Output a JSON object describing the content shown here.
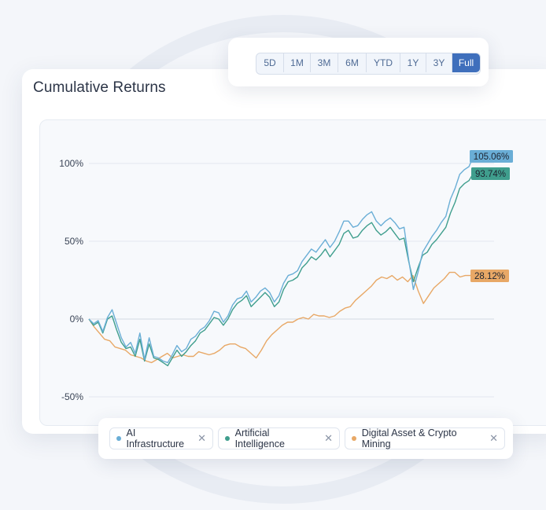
{
  "title": "Cumulative Returns",
  "range_buttons": [
    {
      "label": "5D",
      "active": false
    },
    {
      "label": "1M",
      "active": false
    },
    {
      "label": "3M",
      "active": false
    },
    {
      "label": "6M",
      "active": false
    },
    {
      "label": "YTD",
      "active": false
    },
    {
      "label": "1Y",
      "active": false
    },
    {
      "label": "3Y",
      "active": false
    },
    {
      "label": "Full",
      "active": true
    }
  ],
  "legend": [
    {
      "label": "AI Infrastructure",
      "color": "#6aaed6"
    },
    {
      "label": "Artificial Intelligence",
      "color": "#3f9e8d"
    },
    {
      "label": "Digital Asset & Crypto Mining",
      "color": "#e8a866"
    }
  ],
  "chart_data": {
    "type": "line",
    "ylim": [
      -50,
      110
    ],
    "yticks": [
      {
        "value": 100,
        "label": "100%"
      },
      {
        "value": 50,
        "label": "50%"
      },
      {
        "value": 0,
        "label": "0%"
      },
      {
        "value": -50,
        "label": "-50%"
      }
    ],
    "series": [
      {
        "name": "AI Infrastructure",
        "color": "#6aaed6",
        "end_label": "105.06%",
        "values": [
          0,
          -3,
          -1,
          -8,
          1,
          6,
          -3,
          -12,
          -18,
          -15,
          -22,
          -9,
          -26,
          -12,
          -24,
          -25,
          -27,
          -28,
          -23,
          -17,
          -21,
          -19,
          -13,
          -11,
          -7,
          -5,
          -1,
          5,
          4,
          -2,
          2,
          9,
          13,
          14,
          18,
          11,
          14,
          18,
          20,
          17,
          11,
          15,
          23,
          28,
          29,
          31,
          37,
          41,
          45,
          43,
          47,
          51,
          46,
          50,
          56,
          63,
          63,
          59,
          60,
          64,
          67,
          69,
          63,
          60,
          63,
          65,
          62,
          58,
          59,
          38,
          19,
          30,
          43,
          48,
          53,
          57,
          62,
          66,
          77,
          84,
          93,
          96,
          98,
          105
        ]
      },
      {
        "name": "Artificial Intelligence",
        "color": "#3f9e8d",
        "end_label": "93.74%",
        "values": [
          0,
          -4,
          -2,
          -9,
          0,
          2,
          -7,
          -15,
          -19,
          -18,
          -24,
          -13,
          -27,
          -16,
          -25,
          -26,
          -28,
          -30,
          -25,
          -20,
          -24,
          -21,
          -17,
          -14,
          -9,
          -7,
          -3,
          1,
          0,
          -4,
          0,
          6,
          10,
          12,
          15,
          8,
          11,
          14,
          17,
          14,
          8,
          11,
          19,
          24,
          25,
          27,
          33,
          36,
          40,
          38,
          41,
          45,
          40,
          44,
          48,
          55,
          57,
          52,
          53,
          57,
          60,
          62,
          57,
          54,
          56,
          59,
          55,
          51,
          52,
          37,
          24,
          33,
          41,
          43,
          48,
          51,
          55,
          59,
          68,
          75,
          84,
          87,
          89,
          94
        ]
      },
      {
        "name": "Digital Asset & Crypto Mining",
        "color": "#e8a866",
        "end_label": "28.12%",
        "values": [
          0,
          -5,
          -9,
          -13,
          -14,
          -18,
          -19,
          -20,
          -23,
          -24,
          -25,
          -27,
          -28,
          -26,
          -24,
          -22,
          -25,
          -24,
          -23,
          -24,
          -24,
          -21,
          -22,
          -23,
          -22,
          -20,
          -17,
          -16,
          -16,
          -18,
          -19,
          -22,
          -25,
          -20,
          -14,
          -10,
          -7,
          -4,
          -2,
          -2,
          0,
          1,
          0,
          3,
          2,
          2,
          1,
          2,
          5,
          7,
          8,
          12,
          15,
          18,
          21,
          25,
          27,
          26,
          28,
          25,
          27,
          24,
          28,
          18,
          10,
          15,
          20,
          23,
          26,
          30,
          30,
          27,
          28,
          28
        ]
      }
    ]
  }
}
